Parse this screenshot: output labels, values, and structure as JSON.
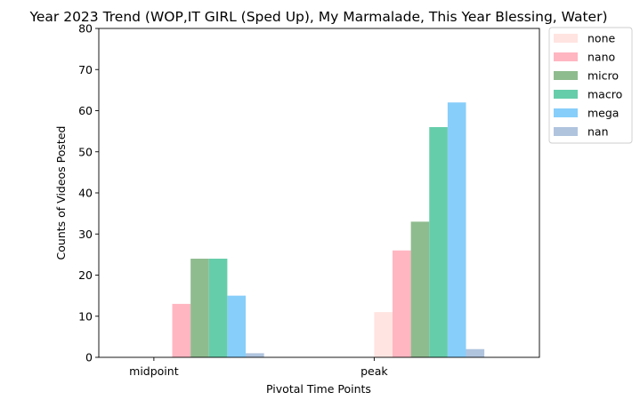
{
  "chart_data": {
    "type": "bar",
    "title": "Year 2023 Trend (WOP,IT GIRL (Sped Up), My Marmalade, This Year Blessing, Water)",
    "xlabel": "Pivotal Time Points",
    "ylabel": "Counts of Videos Posted",
    "categories": [
      "midpoint",
      "peak"
    ],
    "ylim": [
      0,
      80
    ],
    "yticks": [
      "0",
      "10",
      "20",
      "30",
      "40",
      "50",
      "60",
      "70",
      "80"
    ],
    "grid": false,
    "legend_position": "outside-top-right",
    "series": [
      {
        "name": "none",
        "color": "#ffe4e1",
        "values": [
          0,
          11
        ]
      },
      {
        "name": "nano",
        "color": "#ffb6c1",
        "values": [
          13,
          26
        ]
      },
      {
        "name": "micro",
        "color": "#8fbc8f",
        "values": [
          24,
          33
        ]
      },
      {
        "name": "macro",
        "color": "#66cdaa",
        "values": [
          24,
          56
        ]
      },
      {
        "name": "mega",
        "color": "#87cefa",
        "values": [
          15,
          62
        ]
      },
      {
        "name": "nan",
        "color": "#b0c4de",
        "values": [
          1,
          2
        ]
      }
    ]
  }
}
